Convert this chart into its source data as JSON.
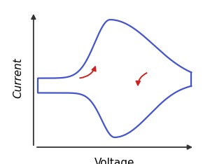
{
  "bg_color": "#ffffff",
  "curve_color": "#4455cc",
  "arrow_color": "#cc2222",
  "xlabel": "Voltage",
  "ylabel": "Current",
  "xlabel_fontsize": 11,
  "ylabel_fontsize": 11,
  "curve_linewidth": 1.6,
  "figsize": [
    3.0,
    2.34
  ],
  "dpi": 100
}
